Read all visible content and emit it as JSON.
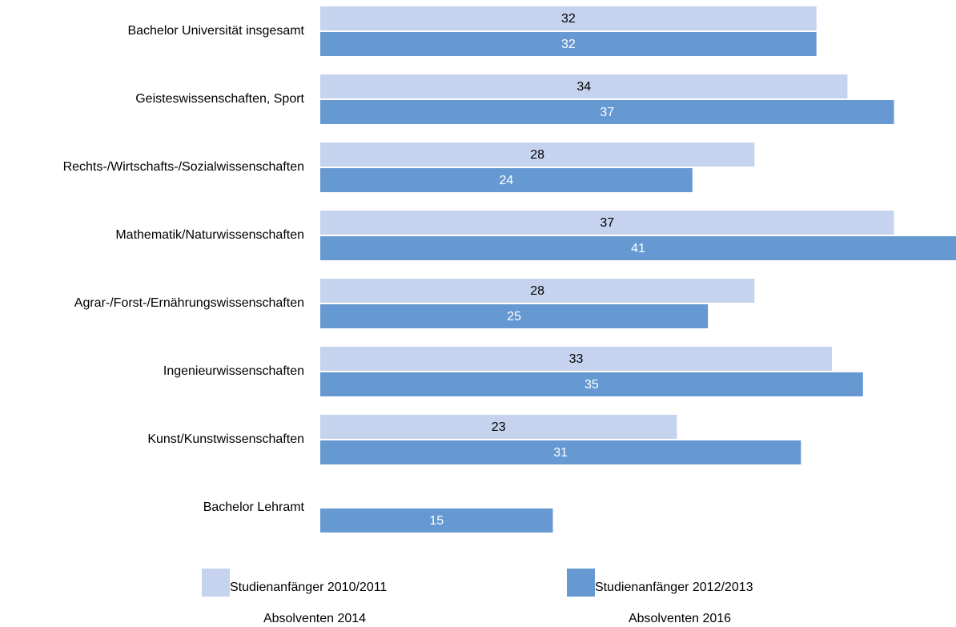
{
  "chart_data": {
    "type": "bar",
    "orientation": "horizontal",
    "categories": [
      "Bachelor Universität insgesamt",
      "Geisteswissenschaften, Sport",
      "Rechts-/Wirtschafts-/Sozialwissenschaften",
      "Mathematik/Naturwissenschaften",
      "Agrar-/Forst-/Ernährungswissenschaften",
      "Ingenieurwissenschaften",
      "Kunst/Kunstwissenschaften",
      "Bachelor Lehramt"
    ],
    "series": [
      {
        "name": "Studienanfänger 2010/2011",
        "name_line2": "Absolventen 2014",
        "color": "#c5d3ee",
        "label_color": "#000000",
        "values": [
          32,
          34,
          28,
          37,
          28,
          33,
          23,
          null
        ]
      },
      {
        "name": "Studienanfänger 2012/2013",
        "name_line2": "Absolventen 2016",
        "color": "#6699d2",
        "label_color": "#ffffff",
        "values": [
          32,
          37,
          24,
          41,
          25,
          35,
          31,
          15
        ]
      }
    ],
    "legend": "bottom"
  }
}
